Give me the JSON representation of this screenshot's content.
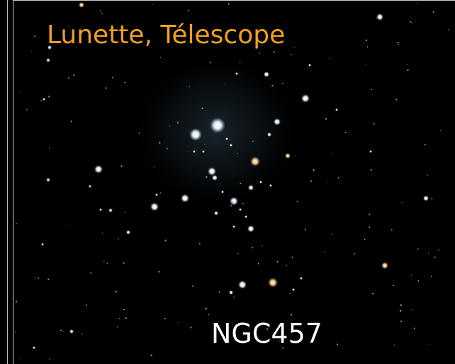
{
  "title": "Lunette, Télescope",
  "label": "NGC457"
}
